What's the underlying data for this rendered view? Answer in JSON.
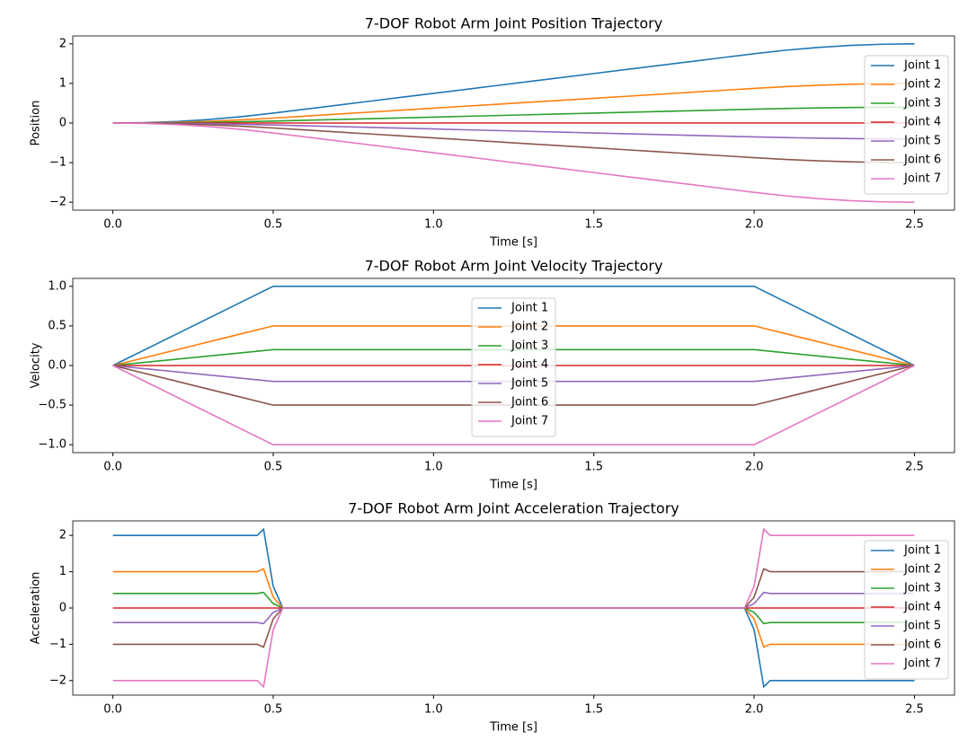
{
  "chart_data": [
    {
      "type": "line",
      "title": "7-DOF Robot Arm Joint Position Trajectory",
      "x_label": "Time [s]",
      "y_label": "Position",
      "x": [
        0,
        0.1,
        0.2,
        0.3,
        0.4,
        0.5,
        0.6,
        0.7,
        0.8,
        0.9,
        1.0,
        1.1,
        1.2,
        1.3,
        1.4,
        1.5,
        1.6,
        1.7,
        1.8,
        1.9,
        2.0,
        2.1,
        2.2,
        2.3,
        2.4,
        2.5
      ],
      "series": [
        {
          "name": "Joint 1",
          "color": "#1f77b4",
          "values": [
            0,
            0.01,
            0.04,
            0.09,
            0.16,
            0.25,
            0.35,
            0.45,
            0.55,
            0.65,
            0.75,
            0.85,
            0.95,
            1.05,
            1.15,
            1.25,
            1.35,
            1.45,
            1.55,
            1.65,
            1.75,
            1.84,
            1.91,
            1.96,
            1.99,
            2.0
          ]
        },
        {
          "name": "Joint 2",
          "color": "#ff7f0e",
          "values": [
            0,
            0.005,
            0.02,
            0.045,
            0.08,
            0.125,
            0.175,
            0.225,
            0.275,
            0.325,
            0.375,
            0.425,
            0.475,
            0.525,
            0.575,
            0.625,
            0.675,
            0.725,
            0.775,
            0.825,
            0.875,
            0.92,
            0.955,
            0.98,
            0.995,
            1.0
          ]
        },
        {
          "name": "Joint 3",
          "color": "#2ca02c",
          "values": [
            0,
            0.002,
            0.008,
            0.018,
            0.032,
            0.05,
            0.07,
            0.09,
            0.11,
            0.13,
            0.15,
            0.17,
            0.19,
            0.21,
            0.23,
            0.25,
            0.27,
            0.29,
            0.31,
            0.33,
            0.35,
            0.368,
            0.382,
            0.392,
            0.398,
            0.4
          ]
        },
        {
          "name": "Joint 4",
          "color": "#d62728",
          "values": [
            0,
            0,
            0,
            0,
            0,
            0,
            0,
            0,
            0,
            0,
            0,
            0,
            0,
            0,
            0,
            0,
            0,
            0,
            0,
            0,
            0,
            0,
            0,
            0,
            0,
            0
          ]
        },
        {
          "name": "Joint 5",
          "color": "#9467bd",
          "values": [
            0,
            -0.002,
            -0.008,
            -0.018,
            -0.032,
            -0.05,
            -0.07,
            -0.09,
            -0.11,
            -0.13,
            -0.15,
            -0.17,
            -0.19,
            -0.21,
            -0.23,
            -0.25,
            -0.27,
            -0.29,
            -0.31,
            -0.33,
            -0.35,
            -0.368,
            -0.382,
            -0.392,
            -0.398,
            -0.4
          ]
        },
        {
          "name": "Joint 6",
          "color": "#8c564b",
          "values": [
            0,
            -0.005,
            -0.02,
            -0.045,
            -0.08,
            -0.125,
            -0.175,
            -0.225,
            -0.275,
            -0.325,
            -0.375,
            -0.425,
            -0.475,
            -0.525,
            -0.575,
            -0.625,
            -0.675,
            -0.725,
            -0.775,
            -0.825,
            -0.875,
            -0.92,
            -0.955,
            -0.98,
            -0.995,
            -1.0
          ]
        },
        {
          "name": "Joint 7",
          "color": "#e377c2",
          "values": [
            0,
            -0.01,
            -0.04,
            -0.09,
            -0.16,
            -0.25,
            -0.35,
            -0.45,
            -0.55,
            -0.65,
            -0.75,
            -0.85,
            -0.95,
            -1.05,
            -1.15,
            -1.25,
            -1.35,
            -1.45,
            -1.55,
            -1.65,
            -1.75,
            -1.84,
            -1.91,
            -1.96,
            -1.99,
            -2.0
          ]
        }
      ],
      "xlim": [
        -0.125,
        2.625
      ],
      "ylim": [
        -2.2,
        2.2
      ],
      "xticks": [
        {
          "value": 0,
          "label": "0.0"
        },
        0.5,
        {
          "value": 1,
          "label": "1.0"
        },
        1.5,
        {
          "value": 2,
          "label": "2.0"
        },
        2.5
      ],
      "yticks": [
        {
          "value": -2,
          "label": "−2"
        },
        {
          "value": -1,
          "label": "−1"
        },
        0,
        1,
        2
      ],
      "legend": "upper right"
    },
    {
      "type": "line",
      "title": "7-DOF Robot Arm Joint Velocity Trajectory",
      "x_label": "Time [s]",
      "y_label": "Velocity",
      "x": [
        0,
        0.5,
        2.0,
        2.5
      ],
      "series": [
        {
          "name": "Joint 1",
          "color": "#1f77b4",
          "values": [
            0,
            1,
            1,
            0
          ]
        },
        {
          "name": "Joint 2",
          "color": "#ff7f0e",
          "values": [
            0,
            0.5,
            0.5,
            0
          ]
        },
        {
          "name": "Joint 3",
          "color": "#2ca02c",
          "values": [
            0,
            0.2,
            0.2,
            0
          ]
        },
        {
          "name": "Joint 4",
          "color": "#d62728",
          "values": [
            0,
            0,
            0,
            0
          ]
        },
        {
          "name": "Joint 5",
          "color": "#9467bd",
          "values": [
            0,
            -0.2,
            -0.2,
            0
          ]
        },
        {
          "name": "Joint 6",
          "color": "#8c564b",
          "values": [
            0,
            -0.5,
            -0.5,
            0
          ]
        },
        {
          "name": "Joint 7",
          "color": "#e377c2",
          "values": [
            0,
            -1,
            -1,
            0
          ]
        }
      ],
      "xlim": [
        -0.125,
        2.625
      ],
      "ylim": [
        -1.1,
        1.1
      ],
      "xticks": [
        {
          "value": 0,
          "label": "0.0"
        },
        0.5,
        {
          "value": 1,
          "label": "1.0"
        },
        1.5,
        {
          "value": 2,
          "label": "2.0"
        },
        2.5
      ],
      "yticks": [
        {
          "value": -1,
          "label": "−1.0"
        },
        {
          "value": -0.5,
          "label": "−0.5"
        },
        {
          "value": 0,
          "label": "0.0"
        },
        0.5,
        {
          "value": 1,
          "label": "1.0"
        }
      ],
      "legend": "upper center"
    },
    {
      "type": "line",
      "title": "7-DOF Robot Arm Joint Acceleration Trajectory",
      "x_label": "Time [s]",
      "y_label": "Acceleration",
      "x": [
        0,
        0.45,
        0.47,
        0.5,
        0.53,
        0.55,
        1.95,
        1.97,
        2.0,
        2.03,
        2.05,
        2.5
      ],
      "series": [
        {
          "name": "Joint 1",
          "color": "#1f77b4",
          "values": [
            2,
            2,
            2.17,
            0.6,
            0,
            0,
            0,
            0,
            -0.6,
            -2.17,
            -2,
            -2
          ]
        },
        {
          "name": "Joint 2",
          "color": "#ff7f0e",
          "values": [
            1,
            1,
            1.08,
            0.3,
            0,
            0,
            0,
            0,
            -0.3,
            -1.08,
            -1,
            -1
          ]
        },
        {
          "name": "Joint 3",
          "color": "#2ca02c",
          "values": [
            0.4,
            0.4,
            0.43,
            0.12,
            0,
            0,
            0,
            0,
            -0.12,
            -0.43,
            -0.4,
            -0.4
          ]
        },
        {
          "name": "Joint 4",
          "color": "#d62728",
          "values": [
            0,
            0,
            0,
            0,
            0,
            0,
            0,
            0,
            0,
            0,
            0,
            0
          ]
        },
        {
          "name": "Joint 5",
          "color": "#9467bd",
          "values": [
            -0.4,
            -0.4,
            -0.43,
            -0.12,
            0,
            0,
            0,
            0,
            0.12,
            0.43,
            0.4,
            0.4
          ]
        },
        {
          "name": "Joint 6",
          "color": "#8c564b",
          "values": [
            -1,
            -1,
            -1.08,
            -0.3,
            0,
            0,
            0,
            0,
            0.3,
            1.08,
            1,
            1
          ]
        },
        {
          "name": "Joint 7",
          "color": "#e377c2",
          "values": [
            -2,
            -2,
            -2.17,
            -0.6,
            0,
            0,
            0,
            0,
            0.6,
            2.17,
            2,
            2
          ]
        }
      ],
      "xlim": [
        -0.125,
        2.625
      ],
      "ylim": [
        -2.4,
        2.4
      ],
      "xticks": [
        {
          "value": 0,
          "label": "0.0"
        },
        0.5,
        {
          "value": 1,
          "label": "1.0"
        },
        1.5,
        {
          "value": 2,
          "label": "2.0"
        },
        2.5
      ],
      "yticks": [
        {
          "value": -2,
          "label": "−2"
        },
        {
          "value": -1,
          "label": "−1"
        },
        0,
        1,
        2
      ],
      "legend": "upper right"
    }
  ]
}
